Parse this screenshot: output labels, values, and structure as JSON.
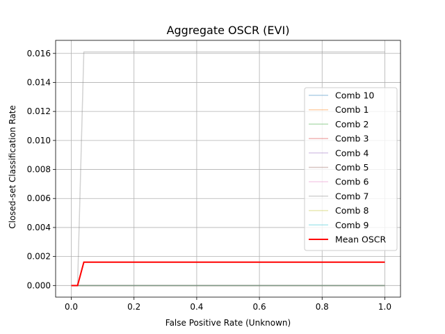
{
  "chart_data": {
    "type": "line",
    "title": "Aggregate OSCR (EVI)",
    "xlabel": "False Positive Rate (Unknown)",
    "ylabel": "Closed-set Classification Rate",
    "xlim": [
      -0.05,
      1.05
    ],
    "ylim": [
      -0.0008,
      0.0169
    ],
    "xticks": [
      0.0,
      0.2,
      0.4,
      0.6,
      0.8,
      1.0
    ],
    "xtick_labels": [
      "0.0",
      "0.2",
      "0.4",
      "0.6",
      "0.8",
      "1.0"
    ],
    "yticks": [
      0.0,
      0.002,
      0.004,
      0.006,
      0.008,
      0.01,
      0.012,
      0.014,
      0.016
    ],
    "ytick_labels": [
      "0.000",
      "0.002",
      "0.004",
      "0.006",
      "0.008",
      "0.010",
      "0.012",
      "0.014",
      "0.016"
    ],
    "grid": true,
    "legend_position": "right",
    "series": [
      {
        "name": "Comb 10",
        "color": "#1f77b4",
        "opacity": 0.35,
        "width": 1.5,
        "x": [
          0,
          1
        ],
        "y": [
          0,
          0
        ]
      },
      {
        "name": "Comb 1",
        "color": "#ff7f0e",
        "opacity": 0.35,
        "width": 1.5,
        "x": [
          0,
          1
        ],
        "y": [
          0,
          0
        ]
      },
      {
        "name": "Comb 2",
        "color": "#2ca02c",
        "opacity": 0.35,
        "width": 1.5,
        "x": [
          0,
          1
        ],
        "y": [
          0,
          0
        ]
      },
      {
        "name": "Comb 3",
        "color": "#d62728",
        "opacity": 0.35,
        "width": 1.5,
        "x": [
          0,
          1
        ],
        "y": [
          0,
          0
        ]
      },
      {
        "name": "Comb 4",
        "color": "#9467bd",
        "opacity": 0.35,
        "width": 1.5,
        "x": [
          0,
          1
        ],
        "y": [
          0,
          0
        ]
      },
      {
        "name": "Comb 5",
        "color": "#8c564b",
        "opacity": 0.35,
        "width": 1.5,
        "x": [
          0,
          1
        ],
        "y": [
          0,
          0
        ]
      },
      {
        "name": "Comb 6",
        "color": "#e377c2",
        "opacity": 0.35,
        "width": 1.5,
        "x": [
          0,
          1
        ],
        "y": [
          0,
          0
        ]
      },
      {
        "name": "Comb 7",
        "color": "#7f7f7f",
        "opacity": 0.35,
        "width": 1.5,
        "x": [
          0,
          0.02,
          0.04,
          1
        ],
        "y": [
          0,
          0,
          0.0161,
          0.0161
        ]
      },
      {
        "name": "Comb 8",
        "color": "#bcbd22",
        "opacity": 0.35,
        "width": 1.5,
        "x": [
          0,
          1
        ],
        "y": [
          0,
          0
        ]
      },
      {
        "name": "Comb 9",
        "color": "#17becf",
        "opacity": 0.35,
        "width": 1.5,
        "x": [
          0,
          1
        ],
        "y": [
          0,
          0
        ]
      },
      {
        "name": "Mean OSCR",
        "color": "#ff0000",
        "opacity": 1,
        "width": 2,
        "x": [
          0,
          0.01,
          0.02,
          0.04,
          1
        ],
        "y": [
          0,
          0,
          0,
          0.00161,
          0.00161
        ]
      }
    ]
  }
}
